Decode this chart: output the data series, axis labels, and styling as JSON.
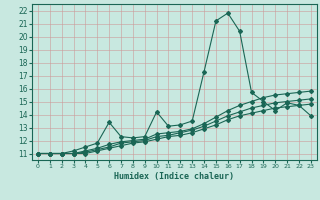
{
  "title": "",
  "xlabel": "Humidex (Indice chaleur)",
  "ylabel": "",
  "xlim": [
    -0.5,
    23.5
  ],
  "ylim": [
    10.5,
    22.5
  ],
  "xticks": [
    0,
    1,
    2,
    3,
    4,
    5,
    6,
    7,
    8,
    9,
    10,
    11,
    12,
    13,
    14,
    15,
    16,
    17,
    18,
    19,
    20,
    21,
    22,
    23
  ],
  "yticks": [
    11,
    12,
    13,
    14,
    15,
    16,
    17,
    18,
    19,
    20,
    21,
    22
  ],
  "background_color": "#c8e8e0",
  "grid_color": "#b0c8c0",
  "line_color": "#1a6655",
  "lines": [
    {
      "x": [
        0,
        1,
        2,
        3,
        4,
        5,
        6,
        7,
        8,
        9,
        10,
        11,
        12,
        13,
        14,
        15,
        16,
        17,
        18,
        19,
        20,
        21,
        22,
        23
      ],
      "y": [
        11.0,
        11.0,
        11.0,
        11.2,
        11.5,
        11.8,
        13.4,
        12.3,
        12.2,
        12.3,
        14.2,
        13.1,
        13.2,
        13.5,
        17.3,
        21.2,
        21.8,
        20.4,
        15.7,
        15.0,
        14.3,
        14.9,
        14.7,
        13.9
      ]
    },
    {
      "x": [
        0,
        1,
        2,
        3,
        4,
        5,
        6,
        7,
        8,
        9,
        10,
        11,
        12,
        13,
        14,
        15,
        16,
        17,
        18,
        19,
        20,
        21,
        22,
        23
      ],
      "y": [
        11.0,
        11.0,
        11.0,
        11.0,
        11.2,
        11.4,
        11.7,
        11.9,
        12.0,
        12.1,
        12.5,
        12.6,
        12.7,
        12.9,
        13.3,
        13.8,
        14.3,
        14.7,
        15.0,
        15.3,
        15.5,
        15.6,
        15.7,
        15.8
      ]
    },
    {
      "x": [
        0,
        1,
        2,
        3,
        4,
        5,
        6,
        7,
        8,
        9,
        10,
        11,
        12,
        13,
        14,
        15,
        16,
        17,
        18,
        19,
        20,
        21,
        22,
        23
      ],
      "y": [
        11.0,
        11.0,
        11.0,
        11.0,
        11.1,
        11.3,
        11.5,
        11.8,
        11.9,
        12.0,
        12.3,
        12.4,
        12.6,
        12.8,
        13.1,
        13.5,
        13.9,
        14.2,
        14.5,
        14.7,
        14.9,
        15.0,
        15.1,
        15.2
      ]
    },
    {
      "x": [
        0,
        1,
        2,
        3,
        4,
        5,
        6,
        7,
        8,
        9,
        10,
        11,
        12,
        13,
        14,
        15,
        16,
        17,
        18,
        19,
        20,
        21,
        22,
        23
      ],
      "y": [
        11.0,
        11.0,
        11.0,
        11.0,
        11.0,
        11.2,
        11.4,
        11.6,
        11.8,
        11.9,
        12.1,
        12.3,
        12.4,
        12.6,
        12.9,
        13.2,
        13.6,
        13.9,
        14.1,
        14.3,
        14.5,
        14.6,
        14.7,
        14.8
      ]
    }
  ]
}
